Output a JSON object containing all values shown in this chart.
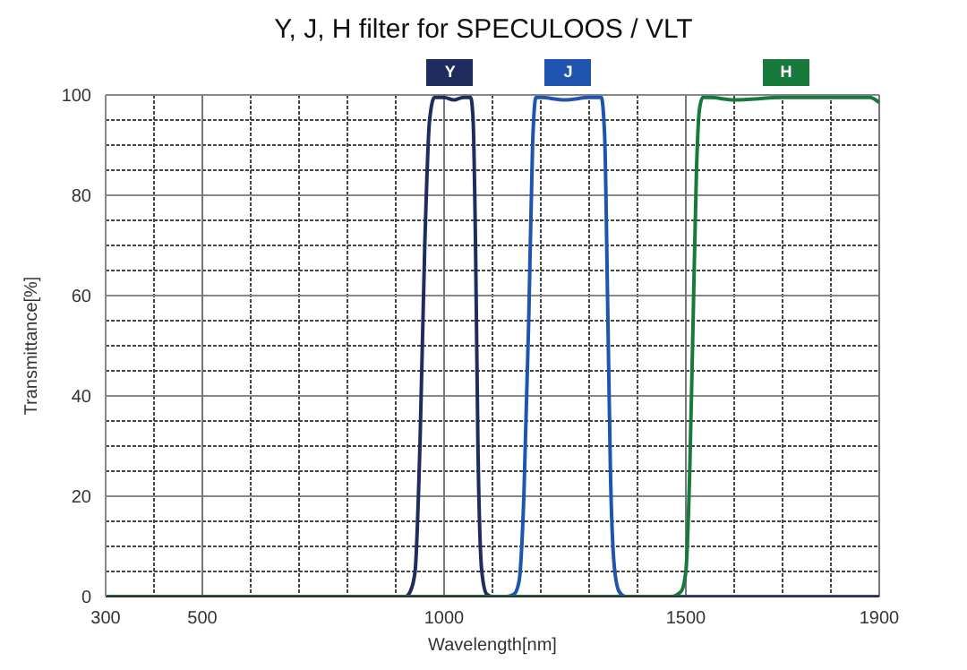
{
  "chart_data": {
    "type": "line",
    "title": "Y, J, H filter for SPECULOOS / VLT",
    "xlabel": "Wavelength[nm]",
    "ylabel": "Transmittance[%]",
    "xlim": [
      300,
      1900
    ],
    "xticks": [
      300,
      {
        "value": 400,
        "label": null
      },
      500,
      {
        "value": 600,
        "label": null
      },
      {
        "value": 700,
        "label": null
      },
      {
        "value": 800,
        "label": null
      },
      {
        "value": 900,
        "label": null
      },
      1000,
      {
        "value": 1100,
        "label": null
      },
      {
        "value": 1200,
        "label": null
      },
      {
        "value": 1300,
        "label": null
      },
      {
        "value": 1400,
        "label": null
      },
      1500,
      {
        "value": 1600,
        "label": null
      },
      {
        "value": 1700,
        "label": null
      },
      {
        "value": 1800,
        "label": null
      },
      1900
    ],
    "ylim": [
      0,
      100
    ],
    "yticks": [
      0,
      {
        "value": 5,
        "label": null
      },
      {
        "value": 10,
        "label": null
      },
      {
        "value": 15,
        "label": null
      },
      20,
      {
        "value": 25,
        "label": null
      },
      {
        "value": 30,
        "label": null
      },
      {
        "value": 35,
        "label": null
      },
      40,
      {
        "value": 45,
        "label": null
      },
      {
        "value": 50,
        "label": null
      },
      {
        "value": 55,
        "label": null
      },
      60,
      {
        "value": 65,
        "label": null
      },
      {
        "value": 70,
        "label": null
      },
      {
        "value": 75,
        "label": null
      },
      80,
      {
        "value": 85,
        "label": null
      },
      {
        "value": 90,
        "label": null
      },
      {
        "value": 95,
        "label": null
      },
      100
    ],
    "grid": true,
    "marker": "none",
    "line_style": "solid",
    "series": [
      {
        "name": "Y",
        "color": "#1e2d5e",
        "x": [
          300,
          900,
          920,
          930,
          940,
          950,
          960,
          970,
          980,
          1000,
          1020,
          1040,
          1055,
          1060,
          1065,
          1070,
          1078,
          1088,
          1100,
          1900
        ],
        "values": [
          0,
          0,
          0,
          1,
          5,
          30,
          70,
          95,
          99.5,
          99.5,
          99,
          99.5,
          99.5,
          95,
          70,
          30,
          5,
          0.5,
          0,
          0
        ]
      },
      {
        "name": "J",
        "color": "#1f55b0",
        "x": [
          300,
          1130,
          1145,
          1155,
          1165,
          1175,
          1183,
          1190,
          1200,
          1250,
          1300,
          1325,
          1332,
          1338,
          1344,
          1352,
          1362,
          1375,
          1900
        ],
        "values": [
          0,
          0,
          0.5,
          3,
          20,
          55,
          90,
          99.5,
          99.5,
          99,
          99.5,
          99.5,
          92,
          60,
          25,
          6,
          1,
          0,
          0
        ]
      },
      {
        "name": "H",
        "color": "#177a3b",
        "x": [
          300,
          1470,
          1490,
          1500,
          1508,
          1515,
          1522,
          1528,
          1535,
          1550,
          1600,
          1700,
          1800,
          1880,
          1900
        ],
        "values": [
          0,
          0,
          1,
          5,
          25,
          55,
          85,
          97,
          99.5,
          99.5,
          99,
          99.5,
          99.5,
          99.5,
          98.5
        ]
      }
    ]
  }
}
